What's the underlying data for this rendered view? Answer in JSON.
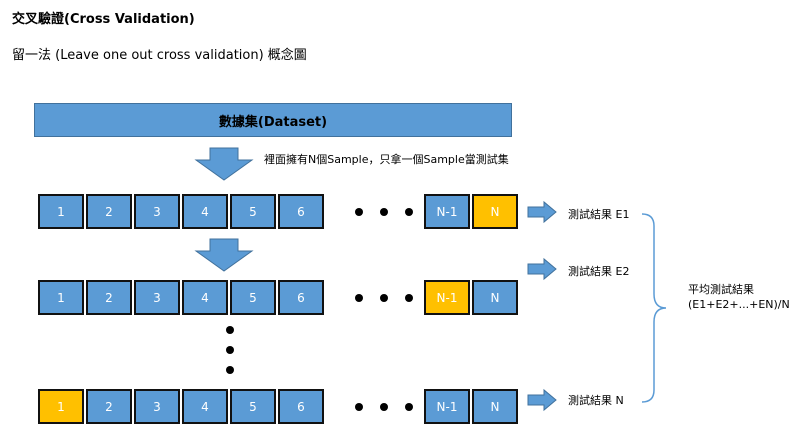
{
  "title": "交叉驗證(Cross Validation)",
  "subtitle": "留一法 (Leave one out cross validation) 概念圖",
  "dataset_label": "數據集(Dataset)",
  "note": "裡面擁有N個Sample，只拿一個Sample當測試集",
  "cell_labels": [
    "1",
    "2",
    "3",
    "4",
    "5",
    "6",
    "N-1",
    "N"
  ],
  "results": [
    "測試結果 E1",
    "測試結果 E2",
    "測試結果 N"
  ],
  "average": {
    "line1": "平均測試結果",
    "line2": "(E1+E2+...+EN)/N"
  },
  "colors": {
    "fold": "#5b9bd5",
    "test": "#ffc000",
    "border": "#111111"
  }
}
